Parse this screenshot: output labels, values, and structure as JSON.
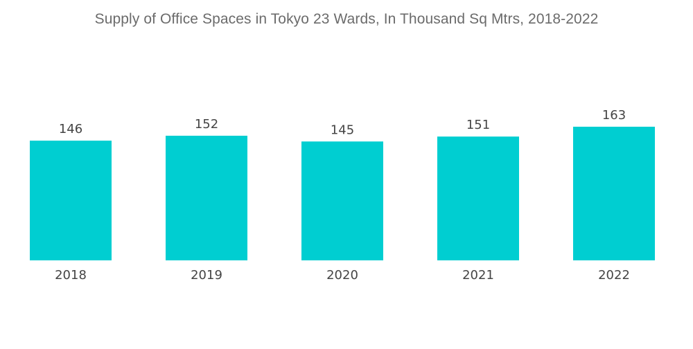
{
  "chart_data": {
    "type": "bar",
    "title": "Supply of Office Spaces in Tokyo 23 Wards, In Thousand Sq Mtrs, 2018-2022",
    "xlabel": "",
    "ylabel": "",
    "categories": [
      "2018",
      "2019",
      "2020",
      "2021",
      "2022"
    ],
    "values": [
      146,
      152,
      145,
      151,
      163
    ],
    "ylim": [
      0,
      163
    ],
    "grid": false,
    "legend": "none",
    "bar_color": "#00CED1"
  }
}
